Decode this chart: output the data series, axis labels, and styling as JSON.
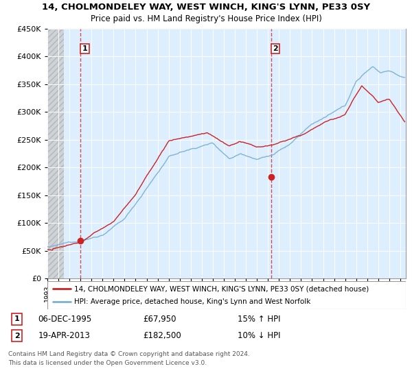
{
  "title_line1": "14, CHOLMONDELEY WAY, WEST WINCH, KING'S LYNN, PE33 0SY",
  "title_line2": "Price paid vs. HM Land Registry's House Price Index (HPI)",
  "legend_label1": "14, CHOLMONDELEY WAY, WEST WINCH, KING'S LYNN, PE33 0SY (detached house)",
  "legend_label2": "HPI: Average price, detached house, King's Lynn and West Norfolk",
  "sale1_date": "06-DEC-1995",
  "sale1_price": "£67,950",
  "sale1_hpi": "15% ↑ HPI",
  "sale2_date": "19-APR-2013",
  "sale2_price": "£182,500",
  "sale2_hpi": "10% ↓ HPI",
  "footnote": "Contains HM Land Registry data © Crown copyright and database right 2024.\nThis data is licensed under the Open Government Licence v3.0.",
  "sale1_year": 1996.0,
  "sale1_value": 67950,
  "sale2_year": 2013.3,
  "sale2_value": 182500,
  "hpi_color": "#7ab0d4",
  "price_color": "#cc2222",
  "vline_color": "#cc3333",
  "chart_bg": "#ddeeff",
  "hatch_bg": "#d0d0d0",
  "ylim": [
    0,
    450000
  ],
  "xlim_start": 1993,
  "xlim_end": 2025.5
}
